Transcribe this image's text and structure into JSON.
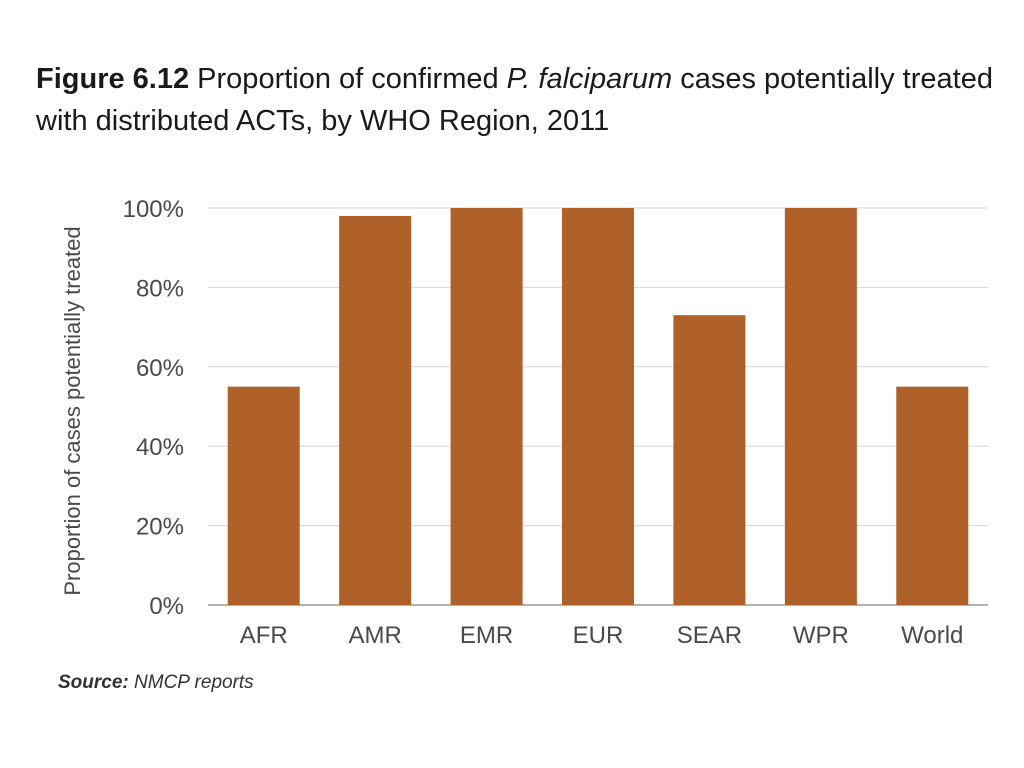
{
  "figure": {
    "number": "Figure 6.12",
    "title_part1": " Proportion of confirmed ",
    "title_italic": "P. falciparum",
    "title_part2": " cases potentially treated with distributed ACTs, by WHO Region, 2011"
  },
  "source": {
    "label": "Source:",
    "text": " NMCP reports"
  },
  "colors": {
    "bar": "#b0612a",
    "grid": "#d6d6d6",
    "axis": "#9a9a9a"
  },
  "chart_data": {
    "type": "bar",
    "title": "Proportion of confirmed P. falciparum cases potentially treated with distributed ACTs, by WHO Region, 2011",
    "xlabel": "",
    "ylabel": "Proportion of cases potentially treated",
    "categories": [
      "AFR",
      "AMR",
      "EMR",
      "EUR",
      "SEAR",
      "WPR",
      "World"
    ],
    "values": [
      55,
      98,
      100,
      100,
      73,
      100,
      55
    ],
    "ylim": [
      0,
      100
    ],
    "yticks": [
      0,
      20,
      40,
      60,
      80,
      100
    ],
    "ytick_labels": [
      "0%",
      "20%",
      "40%",
      "60%",
      "80%",
      "100%"
    ],
    "grid": true,
    "legend": "none"
  }
}
